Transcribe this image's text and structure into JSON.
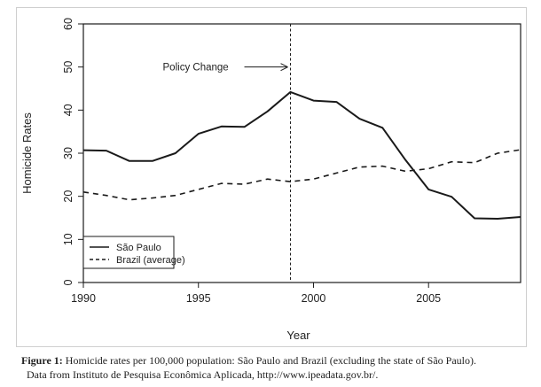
{
  "chart_data": {
    "type": "line",
    "title": "",
    "xlabel": "Year",
    "ylabel": "Homicide Rates",
    "xlim": [
      1990,
      2009
    ],
    "ylim": [
      0,
      60
    ],
    "x_ticks": [
      1990,
      1995,
      2000,
      2005
    ],
    "y_ticks": [
      0,
      10,
      20,
      30,
      40,
      50,
      60
    ],
    "grid": false,
    "legend_position": "bottom-left",
    "series": [
      {
        "name": "São Paulo",
        "line_style": "solid",
        "color": "#1a1a1a",
        "x": [
          1990,
          1991,
          1992,
          1993,
          1994,
          1995,
          1996,
          1997,
          1998,
          1999,
          2000,
          2001,
          2002,
          2003,
          2004,
          2005,
          2006,
          2007,
          2008,
          2009
        ],
        "y": [
          30.7,
          30.6,
          28.2,
          28.2,
          30.0,
          34.5,
          36.2,
          36.1,
          39.7,
          44.2,
          42.2,
          41.9,
          38.0,
          35.9,
          28.4,
          21.6,
          19.9,
          14.9,
          14.8,
          15.2
        ]
      },
      {
        "name": "Brazil (average)",
        "line_style": "dashed",
        "color": "#1a1a1a",
        "x": [
          1990,
          1991,
          1992,
          1993,
          1994,
          1995,
          1996,
          1997,
          1998,
          1999,
          2000,
          2001,
          2002,
          2003,
          2004,
          2005,
          2006,
          2007,
          2008,
          2009
        ],
        "y": [
          21.0,
          20.2,
          19.2,
          19.6,
          20.2,
          21.6,
          23.0,
          22.8,
          24.0,
          23.4,
          24.0,
          25.4,
          26.8,
          27.0,
          25.8,
          26.4,
          28.0,
          27.8,
          30.0,
          30.8
        ]
      }
    ],
    "annotations": [
      {
        "type": "vertical-line",
        "x": 1999,
        "style": "dashed"
      },
      {
        "type": "arrow-label",
        "text": "Policy Change",
        "target_x": 1999,
        "y": 50
      }
    ]
  },
  "caption": {
    "label": "Figure 1:",
    "line1": "Homicide rates per 100,000 population: São Paulo and Brazil (excluding the state of São Paulo).",
    "line2": "Data from Instituto de Pesquisa Econômica Aplicada, http://www.ipeadata.gov.br/."
  }
}
